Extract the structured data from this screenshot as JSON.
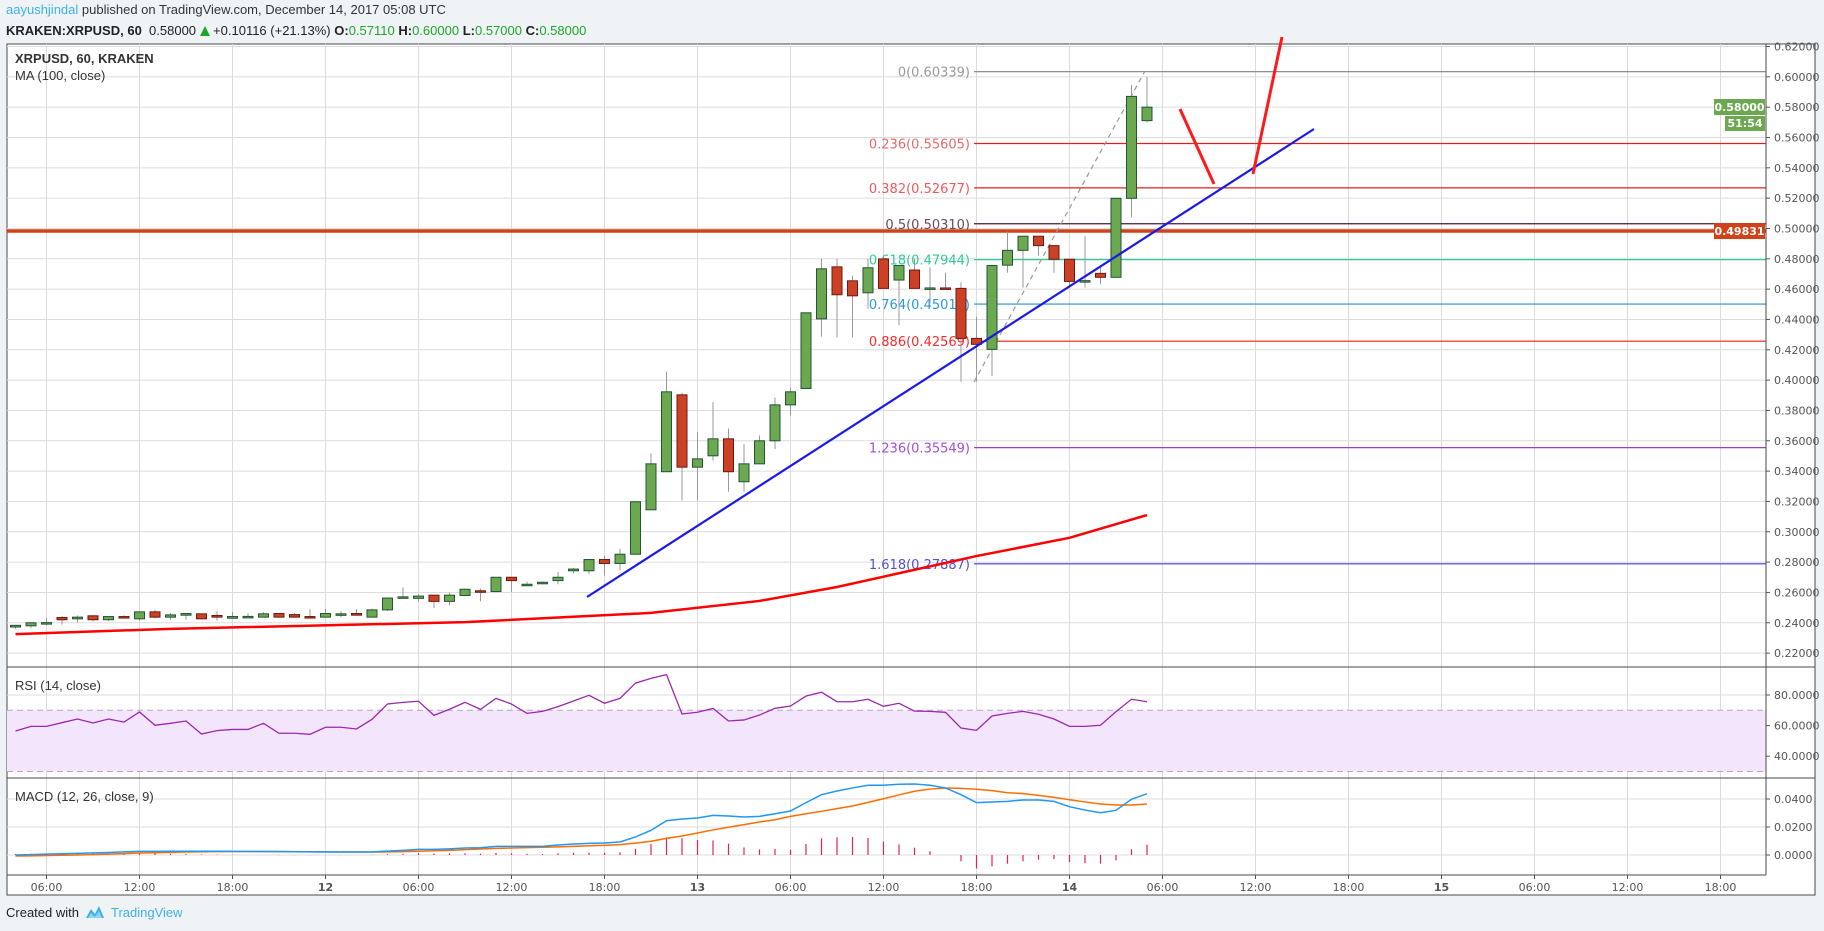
{
  "header": {
    "author": "aayushjindal",
    "published": "published on TradingView.com, December 14, 2017 05:08 UTC",
    "symbol": "KRAKEN:XRPUSD, 60",
    "last": "0.58000",
    "change": "+0.10116 (+21.13%)",
    "o_label": "O:",
    "o": "0.57110",
    "h_label": "H:",
    "h": "0.60000",
    "l_label": "L:",
    "l": "0.57000",
    "c_label": "C:",
    "c": "0.58000",
    "up_color": "#1ea629"
  },
  "legend": {
    "main": "XRPUSD, 60, KRAKEN",
    "ma": "MA (100, close)",
    "rsi": "RSI (14, close)",
    "macd": "MACD (12, 26, close, 9)"
  },
  "price_axis": {
    "ticks": [
      "0.62000",
      "0.60000",
      "0.58000",
      "0.56000",
      "0.54000",
      "0.52000",
      "0.50000",
      "0.48000",
      "0.46000",
      "0.44000",
      "0.42000",
      "0.40000",
      "0.38000",
      "0.36000",
      "0.34000",
      "0.32000",
      "0.30000",
      "0.28000",
      "0.26000",
      "0.24000",
      "0.22000"
    ],
    "current_price": "0.58000",
    "countdown": "51:54",
    "level_label": "0.49831",
    "current_color": "#6ba84f",
    "level_color": "#d0421b"
  },
  "rsi_axis": {
    "ticks": [
      "80.0000",
      "60.0000",
      "40.0000"
    ]
  },
  "macd_axis": {
    "ticks": [
      "0.0400",
      "0.0200",
      "0.0000"
    ]
  },
  "time_axis": {
    "ticks": [
      "06:00",
      "12:00",
      "18:00",
      "12",
      "06:00",
      "12:00",
      "18:00",
      "13",
      "06:00",
      "12:00",
      "18:00",
      "14",
      "06:00",
      "12:00",
      "18:00",
      "15",
      "06:00",
      "12:00",
      "18:00"
    ]
  },
  "fib_levels": [
    {
      "label": "0(0.60339)",
      "price": 0.60339,
      "color": "#808080",
      "text_color": "#9a9a9a"
    },
    {
      "label": "0.236(0.55605)",
      "price": 0.55605,
      "color": "#e02020",
      "text_color": "#e86a6a"
    },
    {
      "label": "0.382(0.52677)",
      "price": 0.52677,
      "color": "#e02020",
      "text_color": "#ee5a5a"
    },
    {
      "label": "0.5(0.50310)",
      "price": 0.5031,
      "color": "#4a1838",
      "text_color": "#6a4a5c"
    },
    {
      "label": "0.618(0.47944)",
      "price": 0.47944,
      "color": "#2ecc9a",
      "text_color": "#2ecc9a"
    },
    {
      "label": "0.764(0.45016)",
      "price": 0.45016,
      "color": "#2a8fd0",
      "text_color": "#2a9ae0"
    },
    {
      "label": "0.886(0.42569)",
      "price": 0.42569,
      "color": "#ff1a1a",
      "text_color": "#ff2a2a"
    },
    {
      "label": "1.236(0.35549)",
      "price": 0.35549,
      "color": "#9c3dcf",
      "text_color": "#a050d8"
    },
    {
      "label": "1.618(0.27887)",
      "price": 0.27887,
      "color": "#3c3cd6",
      "text_color": "#5050e0"
    }
  ],
  "chart_data": {
    "type": "candlestick",
    "interval": "60",
    "candles_start": "Dec 11 04:00",
    "ylim": [
      0.21,
      0.625
    ],
    "grid": true,
    "up_color": "#6ba84f",
    "down_color": "#cc4125",
    "ohlc": [
      [
        0.2372,
        0.2385,
        0.2361,
        0.2383
      ],
      [
        0.238,
        0.2402,
        0.2365,
        0.24
      ],
      [
        0.24,
        0.2433,
        0.2383,
        0.2401
      ],
      [
        0.2435,
        0.2443,
        0.2388,
        0.242
      ],
      [
        0.2426,
        0.2448,
        0.24,
        0.2437
      ],
      [
        0.2446,
        0.2446,
        0.241,
        0.242
      ],
      [
        0.242,
        0.2441,
        0.2412,
        0.2441
      ],
      [
        0.2441,
        0.245,
        0.243,
        0.2433
      ],
      [
        0.2426,
        0.2472,
        0.2415,
        0.2472
      ],
      [
        0.2472,
        0.2485,
        0.243,
        0.2437
      ],
      [
        0.2437,
        0.2463,
        0.242,
        0.2452
      ],
      [
        0.245,
        0.2461,
        0.242,
        0.2461
      ],
      [
        0.2459,
        0.2459,
        0.2426,
        0.2426
      ],
      [
        0.2448,
        0.2476,
        0.2415,
        0.2437
      ],
      [
        0.243,
        0.2472,
        0.243,
        0.2441
      ],
      [
        0.2441,
        0.2463,
        0.2441,
        0.2442
      ],
      [
        0.2437,
        0.247,
        0.2437,
        0.2459
      ],
      [
        0.2461,
        0.2461,
        0.2437,
        0.2437
      ],
      [
        0.2454,
        0.2465,
        0.2437,
        0.2437
      ],
      [
        0.2441,
        0.2489,
        0.2437,
        0.2437
      ],
      [
        0.2437,
        0.2491,
        0.2437,
        0.2461
      ],
      [
        0.2457,
        0.2476,
        0.2437,
        0.2459
      ],
      [
        0.2461,
        0.2491,
        0.245,
        0.245
      ],
      [
        0.2437,
        0.2493,
        0.2437,
        0.2485
      ],
      [
        0.2485,
        0.2565,
        0.2478,
        0.2563
      ],
      [
        0.2567,
        0.2633,
        0.2563,
        0.2571
      ],
      [
        0.2561,
        0.2589,
        0.2541,
        0.2576
      ],
      [
        0.2582,
        0.2582,
        0.2497,
        0.2541
      ],
      [
        0.2541,
        0.26,
        0.2515,
        0.2582
      ],
      [
        0.258,
        0.2626,
        0.258,
        0.2621
      ],
      [
        0.2611,
        0.2626,
        0.2541,
        0.2606
      ],
      [
        0.2606,
        0.27,
        0.26,
        0.27
      ],
      [
        0.27,
        0.27,
        0.2602,
        0.2678
      ],
      [
        0.265,
        0.2672,
        0.265,
        0.2654
      ],
      [
        0.2659,
        0.2672,
        0.2652,
        0.2667
      ],
      [
        0.2678,
        0.2735,
        0.2654,
        0.27
      ],
      [
        0.2743,
        0.2763,
        0.2724,
        0.2754
      ],
      [
        0.2743,
        0.2817,
        0.2722,
        0.2817
      ],
      [
        0.2817,
        0.2843,
        0.2711,
        0.2791
      ],
      [
        0.2791,
        0.2887,
        0.2746,
        0.2852
      ],
      [
        0.2852,
        0.3198,
        0.2852,
        0.3198
      ],
      [
        0.3145,
        0.3516,
        0.3145,
        0.3448
      ],
      [
        0.3396,
        0.4056,
        0.3396,
        0.3923
      ],
      [
        0.3903,
        0.3917,
        0.3206,
        0.3426
      ],
      [
        0.3426,
        0.3657,
        0.3206,
        0.3481
      ],
      [
        0.3501,
        0.3855,
        0.347,
        0.3613
      ],
      [
        0.3613,
        0.3681,
        0.3264,
        0.3396
      ],
      [
        0.333,
        0.358,
        0.3264,
        0.3448
      ],
      [
        0.3448,
        0.3635,
        0.3448,
        0.36
      ],
      [
        0.36,
        0.3885,
        0.3545,
        0.3837
      ],
      [
        0.3837,
        0.395,
        0.3767,
        0.3923
      ],
      [
        0.3945,
        0.4444,
        0.394,
        0.4444
      ],
      [
        0.4404,
        0.48,
        0.4287,
        0.4734
      ],
      [
        0.4747,
        0.48,
        0.428,
        0.4563
      ],
      [
        0.4655,
        0.4689,
        0.428,
        0.4556
      ],
      [
        0.4576,
        0.48,
        0.447,
        0.4741
      ],
      [
        0.4799,
        0.482,
        0.4605,
        0.4605
      ],
      [
        0.466,
        0.476,
        0.4362,
        0.4756
      ],
      [
        0.4726,
        0.4803,
        0.4605,
        0.4605
      ],
      [
        0.4608,
        0.4744,
        0.4507,
        0.4608
      ],
      [
        0.4608,
        0.4709,
        0.4608,
        0.4607
      ],
      [
        0.4605,
        0.4645,
        0.3989,
        0.4275
      ],
      [
        0.4275,
        0.4418,
        0.3989,
        0.4236
      ],
      [
        0.4203,
        0.476,
        0.4027,
        0.4756
      ],
      [
        0.4758,
        0.4979,
        0.4709,
        0.4856
      ],
      [
        0.4856,
        0.495,
        0.461,
        0.4949
      ],
      [
        0.4949,
        0.4949,
        0.4821,
        0.4887
      ],
      [
        0.4887,
        0.4887,
        0.4709,
        0.4797
      ],
      [
        0.4797,
        0.4797,
        0.461,
        0.4651
      ],
      [
        0.4655,
        0.495,
        0.461,
        0.4656
      ],
      [
        0.4704,
        0.4759,
        0.4632,
        0.4678
      ],
      [
        0.4678,
        0.5199,
        0.4678,
        0.5199
      ],
      [
        0.5199,
        0.5946,
        0.5072,
        0.5871
      ],
      [
        0.5711,
        0.6,
        0.57,
        0.58
      ]
    ],
    "ma_100": {
      "color": "#ff0000",
      "points": [
        [
          "Dec 11 04:00",
          0.2325
        ],
        [
          "Dec 11 14:00",
          0.236
        ],
        [
          "Dec 12 09:00",
          0.2404
        ],
        [
          "Dec 12 21:00",
          0.2465
        ],
        [
          "Dec 13 04:00",
          0.2544
        ],
        [
          "Dec 13 09:00",
          0.2636
        ],
        [
          "Dec 13 18:00",
          0.284
        ],
        [
          "Dec 14 00:00",
          0.296
        ],
        [
          "Dec 14 05:00",
          0.311
        ]
      ]
    },
    "horizontal_level": 0.49831,
    "rsi": {
      "ylim": [
        25,
        100
      ],
      "bands": [
        70,
        30
      ],
      "color": "#9c27b0",
      "band_color": "#f3e5fc",
      "values": [
        56.5,
        59.5,
        59.5,
        61.9,
        64.3,
        61.7,
        64.3,
        62.3,
        68.9,
        60.2,
        61.5,
        63.0,
        54.5,
        56.7,
        57.5,
        57.5,
        61.5,
        55,
        55,
        54.3,
        58.9,
        58.9,
        57.8,
        64.1,
        74.1,
        75.2,
        75.9,
        66.7,
        70.7,
        75.2,
        70.6,
        77.8,
        74.1,
        68,
        69.3,
        72.4,
        76.1,
        79.8,
        74.6,
        77.8,
        87.8,
        90.9,
        93.3,
        67.6,
        68.7,
        71.3,
        63,
        63.7,
        66.9,
        71.3,
        72.8,
        79.3,
        81.8,
        75.6,
        75.6,
        77.2,
        72.6,
        74.6,
        69.5,
        69.3,
        68.7,
        58.4,
        56.9,
        66.3,
        68,
        69.3,
        67.4,
        64.3,
        59.5,
        59.5,
        60.2,
        69.1,
        77.2,
        75.6
      ]
    },
    "macd": {
      "macd_color": "#2196f3",
      "signal_color": "#ff6d00",
      "hist_color": "#e91e63",
      "macd": [
        0.0,
        0.0003,
        0.0006,
        0.0009,
        0.0012,
        0.0015,
        0.0018,
        0.0022,
        0.0026,
        0.0026,
        0.0027,
        0.0027,
        0.0027,
        0.0027,
        0.0026,
        0.0025,
        0.0025,
        0.0024,
        0.0023,
        0.0022,
        0.0021,
        0.0021,
        0.0021,
        0.0022,
        0.0028,
        0.0033,
        0.004,
        0.004,
        0.0044,
        0.005,
        0.0052,
        0.0062,
        0.0062,
        0.0062,
        0.0062,
        0.0071,
        0.0079,
        0.0083,
        0.0086,
        0.0093,
        0.0129,
        0.0176,
        0.0245,
        0.0257,
        0.0264,
        0.0283,
        0.0279,
        0.0271,
        0.0276,
        0.0295,
        0.0314,
        0.0374,
        0.0431,
        0.0457,
        0.0479,
        0.0498,
        0.0498,
        0.0505,
        0.0507,
        0.0498,
        0.0479,
        0.0431,
        0.0374,
        0.0379,
        0.0383,
        0.0393,
        0.0393,
        0.0383,
        0.0345,
        0.0321,
        0.0302,
        0.0319,
        0.0398,
        0.0438
      ],
      "signal": [
        -0.0007,
        -0.0006,
        -0.0004,
        -0.0002,
        0.0,
        0.0003,
        0.0006,
        0.001,
        0.0014,
        0.0016,
        0.0019,
        0.0021,
        0.0023,
        0.0024,
        0.0025,
        0.0025,
        0.0025,
        0.0025,
        0.0024,
        0.0023,
        0.0022,
        0.0022,
        0.0021,
        0.0021,
        0.0022,
        0.0024,
        0.0027,
        0.003,
        0.0033,
        0.0038,
        0.0043,
        0.0047,
        0.005,
        0.0053,
        0.0055,
        0.0058,
        0.0062,
        0.0066,
        0.0069,
        0.0074,
        0.0085,
        0.0098,
        0.0119,
        0.0136,
        0.0157,
        0.0179,
        0.0198,
        0.0217,
        0.0236,
        0.0252,
        0.0276,
        0.0295,
        0.0312,
        0.0331,
        0.035,
        0.0376,
        0.0402,
        0.0429,
        0.0455,
        0.0471,
        0.0479,
        0.0476,
        0.047,
        0.046,
        0.0445,
        0.0438,
        0.0426,
        0.0412,
        0.0395,
        0.0379,
        0.0364,
        0.0357,
        0.0357,
        0.0364
      ]
    }
  },
  "footer": {
    "created_with": "Created with",
    "brand": "TradingView"
  }
}
